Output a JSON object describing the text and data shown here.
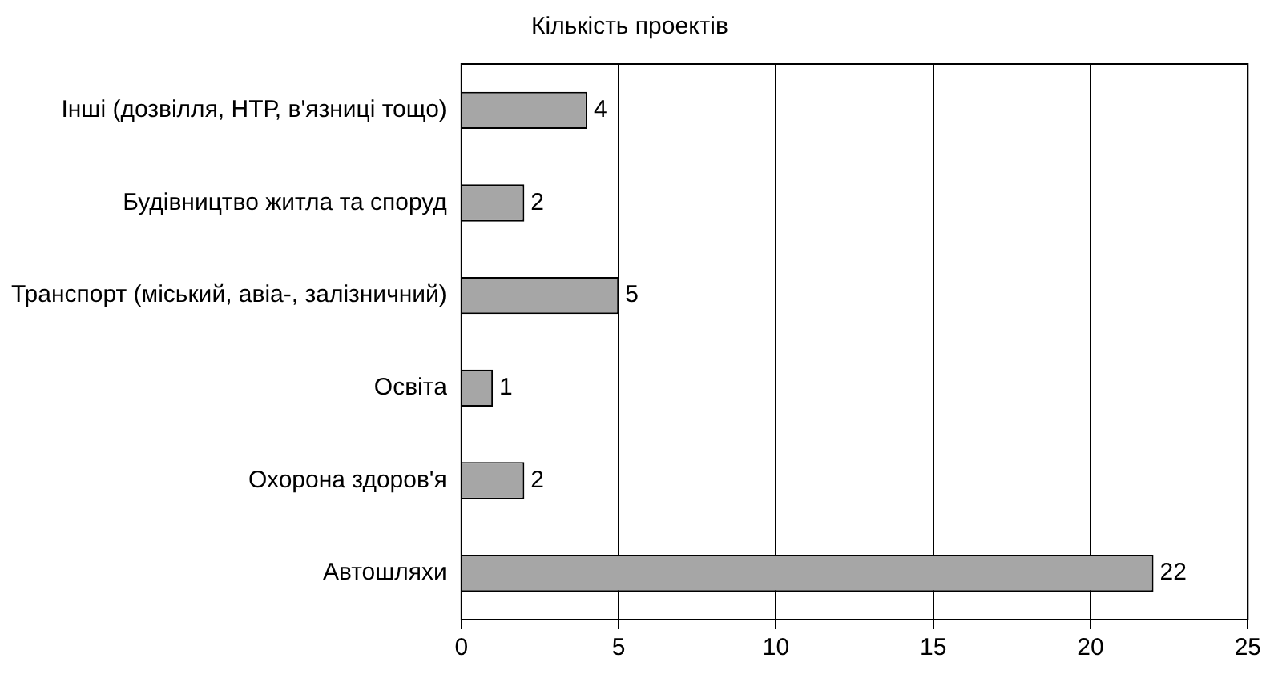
{
  "chart_data": {
    "type": "bar",
    "orientation": "horizontal",
    "title": "Кількість проектів",
    "categories": [
      "Інші (дозвілля, НТР, в'язниці тощо)",
      "Будівництво житла та споруд",
      "Транспорт (міський, авіа-, залізничний)",
      "Освіта",
      "Охорона здоров'я",
      "Автошляхи"
    ],
    "values": [
      4,
      2,
      5,
      1,
      2,
      22
    ],
    "color": "#a6a6a6",
    "xlim": [
      0,
      25
    ],
    "xticks": [
      0,
      5,
      10,
      15,
      20,
      25
    ],
    "grid": "x",
    "data_labels": true
  }
}
